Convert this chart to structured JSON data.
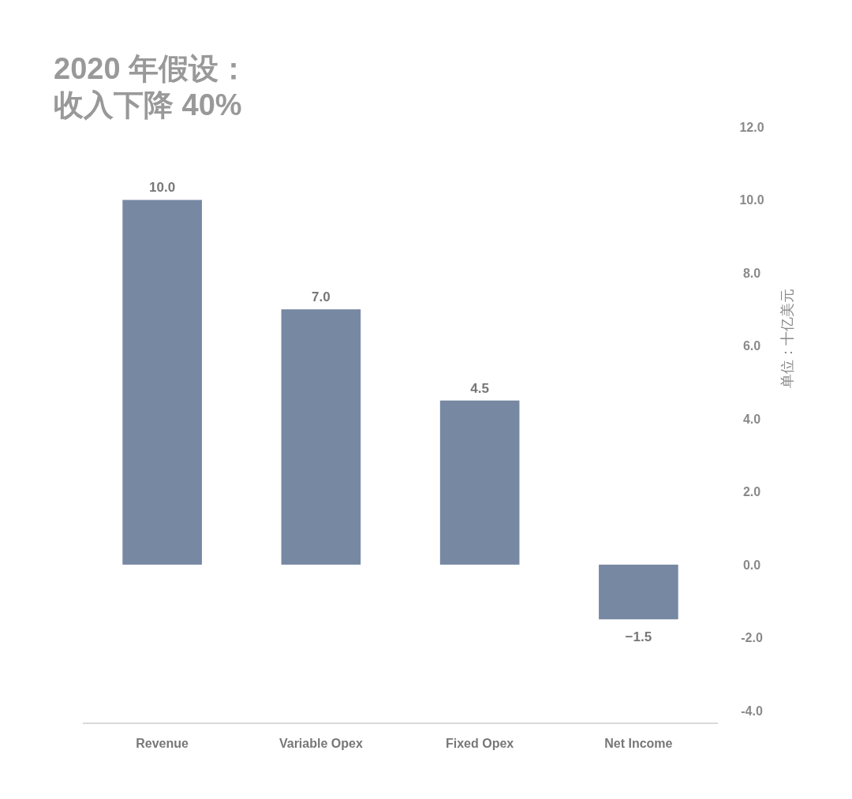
{
  "chart_data": {
    "type": "bar",
    "title": "2020 年假设：",
    "subtitle": "收入下降 40%",
    "ylabel": "单位：十亿美元",
    "categories": [
      "Revenue",
      "Variable Opex",
      "Fixed Opex",
      "Net Income"
    ],
    "values": [
      10.0,
      7.0,
      4.5,
      -1.5
    ],
    "color": "#7788a3",
    "value_labels": [
      "10.0",
      "7.0",
      "4.5",
      "−1.5"
    ],
    "ylim": [
      -4.35,
      12
    ],
    "yticks": [
      {
        "value": 12,
        "label": "12.0"
      },
      {
        "value": 10,
        "label": "10.0"
      },
      {
        "value": 8,
        "label": "8.0"
      },
      {
        "value": 6,
        "label": "6.0"
      },
      {
        "value": 4,
        "label": "4.0"
      },
      {
        "value": 2,
        "label": "2.0"
      },
      {
        "value": 0,
        "label": "0.0"
      },
      {
        "value": -2,
        "label": "-2.0"
      },
      {
        "value": -4,
        "label": "-4.0"
      }
    ],
    "grid": false
  }
}
